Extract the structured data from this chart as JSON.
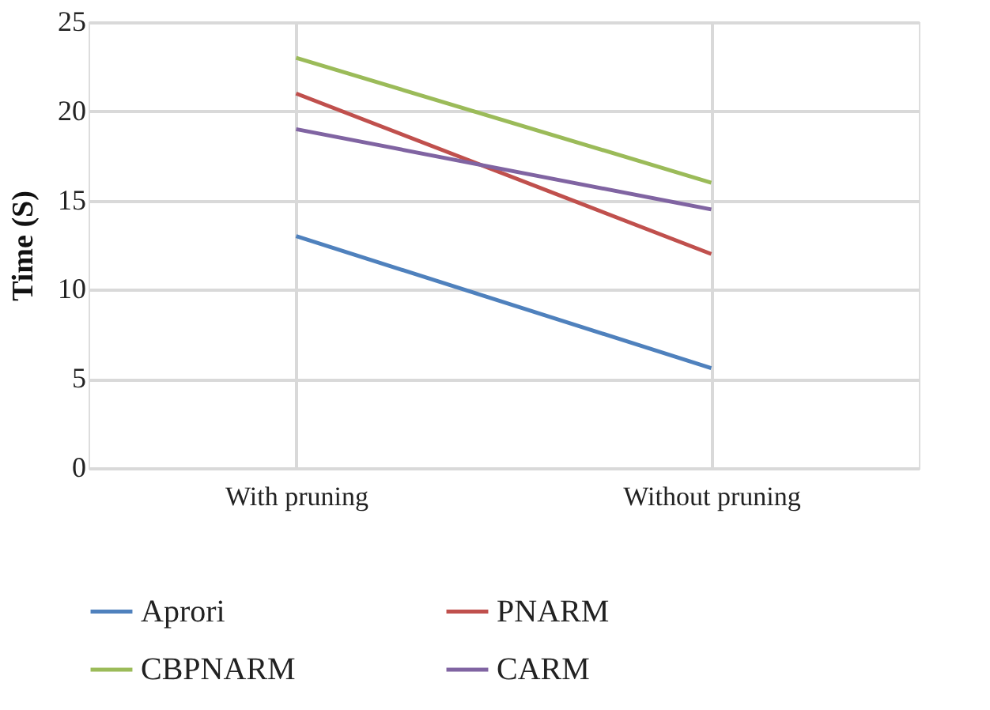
{
  "chart_data": {
    "type": "line",
    "ylabel": "Time (S)",
    "categories": [
      "With pruning",
      "Without pruning"
    ],
    "series": [
      {
        "name": "Aprori",
        "color": "#4f81bd",
        "values": [
          13,
          5.6
        ]
      },
      {
        "name": "PNARM",
        "color": "#c0504d",
        "values": [
          21,
          12
        ]
      },
      {
        "name": "CBPNARM",
        "color": "#9bbb59",
        "values": [
          23,
          16
        ]
      },
      {
        "name": "CARM",
        "color": "#8064a2",
        "values": [
          19,
          14.5
        ]
      }
    ],
    "ylim": [
      0,
      25
    ],
    "yticks": [
      0,
      5,
      10,
      15,
      20,
      25
    ],
    "grid": true,
    "legend": "bottom",
    "marker": "none",
    "line_style": "solid"
  }
}
